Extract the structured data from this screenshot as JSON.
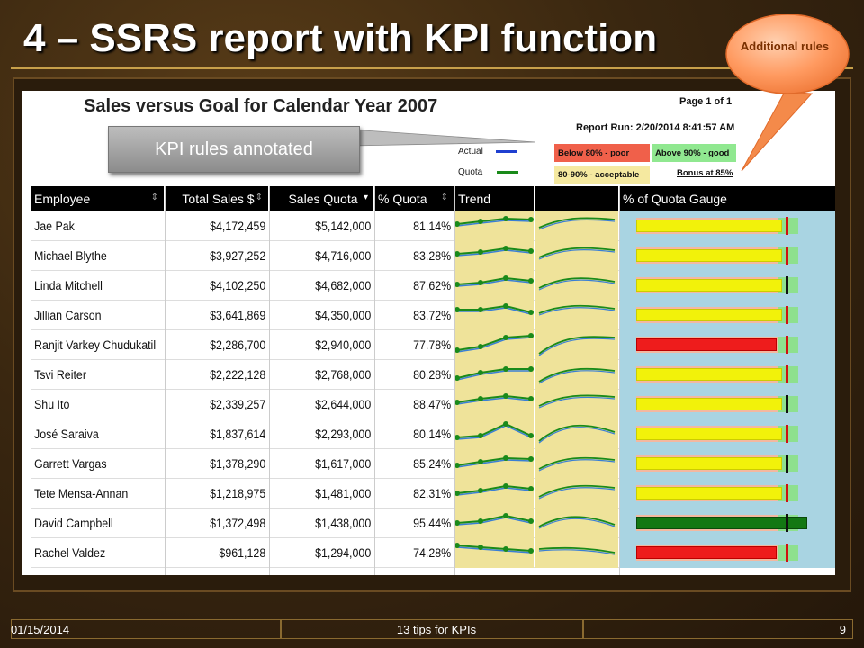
{
  "slide": {
    "title": "4 – SSRS report with KPI function",
    "callout_kpi": "KPI rules annotated",
    "callout_rules": "Additional rules",
    "footer_date": "01/15/2014",
    "footer_center": "13 tips for KPIs",
    "footer_page": "9"
  },
  "report": {
    "title": "Sales versus Goal for Calendar Year 2007",
    "page": "Page 1 of 1",
    "run": "Report Run: 2/20/2014 8:41:57 AM",
    "legend": [
      {
        "label": "Actual",
        "color": "#1f3fd0"
      },
      {
        "label": "Quota",
        "color": "#1a8a1a"
      }
    ],
    "rules": {
      "poor": "Below 80% - poor",
      "good": "Above 90% - good",
      "acceptable": "80-90% - acceptable",
      "bonus": "Bonus at 85%"
    },
    "columns": [
      "Employee",
      "Total Sales $",
      "Sales Quota",
      "% Quota",
      "Trend",
      "% of Quota Gauge"
    ],
    "rows": [
      {
        "employee": "Jae Pak",
        "sales": "$4,172,459",
        "quota": "$5,142,000",
        "pct": "81.14%",
        "pct_value": 81.14
      },
      {
        "employee": "Michael Blythe",
        "sales": "$3,927,252",
        "quota": "$4,716,000",
        "pct": "83.28%",
        "pct_value": 83.28
      },
      {
        "employee": "Linda Mitchell",
        "sales": "$4,102,250",
        "quota": "$4,682,000",
        "pct": "87.62%",
        "pct_value": 87.62
      },
      {
        "employee": "Jillian Carson",
        "sales": "$3,641,869",
        "quota": "$4,350,000",
        "pct": "83.72%",
        "pct_value": 83.72
      },
      {
        "employee": "Ranjit Varkey Chudukatil",
        "sales": "$2,286,700",
        "quota": "$2,940,000",
        "pct": "77.78%",
        "pct_value": 77.78
      },
      {
        "employee": "Tsvi Reiter",
        "sales": "$2,222,128",
        "quota": "$2,768,000",
        "pct": "80.28%",
        "pct_value": 80.28
      },
      {
        "employee": "Shu Ito",
        "sales": "$2,339,257",
        "quota": "$2,644,000",
        "pct": "88.47%",
        "pct_value": 88.47
      },
      {
        "employee": "José Saraiva",
        "sales": "$1,837,614",
        "quota": "$2,293,000",
        "pct": "80.14%",
        "pct_value": 80.14
      },
      {
        "employee": "Garrett Vargas",
        "sales": "$1,378,290",
        "quota": "$1,617,000",
        "pct": "85.24%",
        "pct_value": 85.24
      },
      {
        "employee": "Tete Mensa-Annan",
        "sales": "$1,218,975",
        "quota": "$1,481,000",
        "pct": "82.31%",
        "pct_value": 82.31
      },
      {
        "employee": "David Campbell",
        "sales": "$1,372,498",
        "quota": "$1,438,000",
        "pct": "95.44%",
        "pct_value": 95.44
      },
      {
        "employee": "Rachel Valdez",
        "sales": "$961,128",
        "quota": "$1,294,000",
        "pct": "74.28%",
        "pct_value": 74.28
      }
    ],
    "colors": {
      "poor": "#ee1c1c",
      "acceptable": "#f2f20a",
      "good": "#137813",
      "trend_actual": "#3a7fd5",
      "trend_quota": "#1a8a1a",
      "trend_bg": "#efe39a",
      "gauge_bg": "#a9d4e2"
    }
  }
}
